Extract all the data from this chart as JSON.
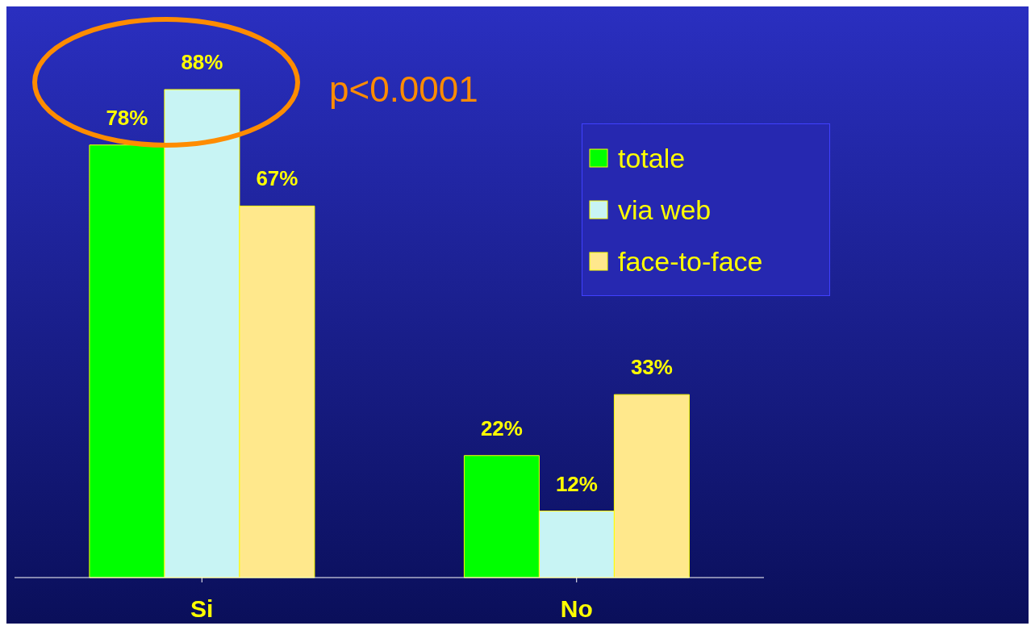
{
  "chart_data": {
    "type": "bar",
    "categories": [
      "Si",
      "No"
    ],
    "series": [
      {
        "name": "totale",
        "color": "#00ff00",
        "values": [
          78,
          22
        ],
        "value_labels": [
          "78%",
          "22%"
        ]
      },
      {
        "name": "via web",
        "color": "#c8f4f4",
        "values": [
          88,
          12
        ],
        "value_labels": [
          "88%",
          "12%"
        ]
      },
      {
        "name": "face-to-face",
        "color": "#ffe88c",
        "values": [
          67,
          33
        ],
        "value_labels": [
          "67%",
          "33%"
        ]
      }
    ],
    "annotations": [
      "p<0.0001"
    ],
    "legend": "top right",
    "grid": false
  }
}
